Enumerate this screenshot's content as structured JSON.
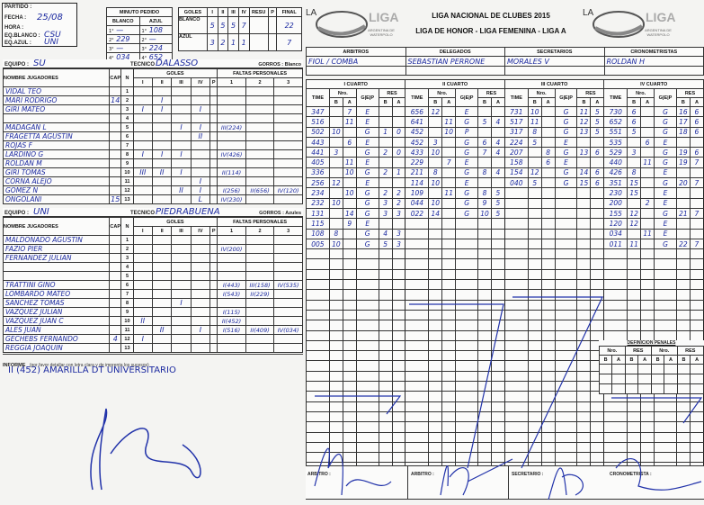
{
  "header": {
    "partido_label": "PARTIDO :",
    "fecha_label": "FECHA :",
    "fecha": "25/08",
    "hora_label": "HORA :",
    "eq_blanco_label": "EQ.BLANCO :",
    "eq_blanco": "CSU",
    "eq_azul_label": "EQ.AZUL :",
    "eq_azul": "UNI"
  },
  "minuto_pedido": {
    "title": "MINUTO PEDIDO",
    "blanco_label": "BLANCO",
    "azul_label": "AZUL",
    "rows": [
      {
        "q": "1°",
        "blanco": "—",
        "azul": "108"
      },
      {
        "q": "2°",
        "blanco": "229",
        "azul": "—"
      },
      {
        "q": "3°",
        "blanco": "—",
        "azul": "224"
      },
      {
        "q": "4°",
        "blanco": "034",
        "azul": "652"
      }
    ]
  },
  "goles": {
    "title": "GOLES",
    "cols": [
      "I",
      "II",
      "III",
      "IV",
      "RESU",
      "P",
      "FINAL"
    ],
    "blanco": {
      "label": "BLANCO",
      "q": [
        "5",
        "5",
        "5",
        "7"
      ],
      "resu": "",
      "p": "",
      "final": "22"
    },
    "azul": {
      "label": "AZUL",
      "q": [
        "3",
        "2",
        "1",
        "1"
      ],
      "resu": "",
      "p": "",
      "final": "7"
    }
  },
  "brand": {
    "la": "LA",
    "liga": "LIGA",
    "sub": "ARGENTINA DE WATERPOLO",
    "title1": "LIGA NACIONAL DE CLUBES 2015",
    "title2": "LIGA DE HONOR - LIGA FEMENINA - LIGA A"
  },
  "officials": {
    "headers": [
      "ARBITROS",
      "DELEGADOS",
      "SECRETARIOS",
      "CRONOMETRISTAS"
    ],
    "values": [
      "FIOL / COMBA",
      "SEBASTIAN PERRONE",
      "MORALES V",
      "ROLDAN H"
    ]
  },
  "labels": {
    "equipo": "EQUIPO :",
    "tecnico": "TECNICO",
    "nombre": "NOMBRE JUGADORES",
    "cap": "CAP",
    "n": "N",
    "goles": "GOLES",
    "faltas": "FALTAS PERSONALES",
    "gq": [
      "I",
      "II",
      "III",
      "IV",
      "P"
    ],
    "fq": [
      "1",
      "2",
      "3"
    ],
    "informe": "INFORME",
    "informe_note": "(por favor detallar con letra clara y de imprenta los sucesos)",
    "cuarto": [
      "I CUARTO",
      "II CUARTO",
      "III CUARTO",
      "IV CUARTO"
    ],
    "time": "TIME",
    "nro": "Nro.",
    "gep": "G|E|P",
    "res": "RES",
    "b": "B",
    "a": "A",
    "penales": "DEFINICION PENALES",
    "arbitro": "ARBITRO :",
    "secretario": "SECRETARIO :",
    "cronometrista": "CRONOMETRISTA :"
  },
  "team_a": {
    "equipo": "SU",
    "tecnico": "DALASSO",
    "gorros": "GORROS : Blanco",
    "players": [
      {
        "n": "1",
        "name": "VIDAL TEO",
        "cap": "",
        "g": [
          "",
          "",
          "",
          "",
          ""
        ],
        "f": [
          "",
          "",
          ""
        ]
      },
      {
        "n": "2",
        "name": "MARI RODRIGO",
        "cap": "14",
        "g": [
          "",
          "I",
          "",
          "",
          ""
        ],
        "f": [
          "",
          "",
          ""
        ]
      },
      {
        "n": "3",
        "name": "GIRI MATEO",
        "cap": "",
        "g": [
          "I",
          "I",
          "",
          "I",
          ""
        ],
        "f": [
          "",
          "",
          ""
        ]
      },
      {
        "n": "4",
        "name": "",
        "cap": "",
        "g": [
          "",
          "",
          "",
          "",
          ""
        ],
        "f": [
          "",
          "",
          ""
        ]
      },
      {
        "n": "5",
        "name": "MADAGAN L",
        "cap": "",
        "g": [
          "",
          "",
          "I",
          "I",
          ""
        ],
        "f": [
          "III(224)",
          "",
          ""
        ]
      },
      {
        "n": "6",
        "name": "FRAGETTA AGUSTIN",
        "cap": "",
        "g": [
          "",
          "",
          "",
          "II",
          ""
        ],
        "f": [
          "",
          "",
          ""
        ]
      },
      {
        "n": "7",
        "name": "ROJAS F",
        "cap": "",
        "g": [
          "",
          "",
          "",
          "",
          ""
        ],
        "f": [
          "",
          "",
          ""
        ]
      },
      {
        "n": "8",
        "name": "LARDINO G",
        "cap": "",
        "g": [
          "I",
          "I",
          "I",
          "",
          ""
        ],
        "f": [
          "IV(426)",
          "",
          ""
        ]
      },
      {
        "n": "9",
        "name": "ROLDAN M",
        "cap": "",
        "g": [
          "",
          "",
          "",
          "",
          ""
        ],
        "f": [
          "",
          "",
          ""
        ]
      },
      {
        "n": "10",
        "name": "GIRI TOMAS",
        "cap": "",
        "g": [
          "III",
          "II",
          "I",
          "",
          ""
        ],
        "f": [
          "II(114)",
          "",
          ""
        ]
      },
      {
        "n": "11",
        "name": "CORNA ALEJO",
        "cap": "",
        "g": [
          "",
          "",
          "",
          "I",
          ""
        ],
        "f": [
          "",
          "",
          ""
        ]
      },
      {
        "n": "12",
        "name": "GOMEZ N",
        "cap": "",
        "g": [
          "",
          "",
          "II",
          "I",
          ""
        ],
        "f": [
          "I(256)",
          "II(656)",
          "IV(120)"
        ]
      },
      {
        "n": "13",
        "name": "ONGOLANI",
        "cap": "15",
        "g": [
          "",
          "",
          "",
          "L",
          ""
        ],
        "f": [
          "IV(230)",
          "",
          ""
        ]
      }
    ]
  },
  "team_b": {
    "equipo": "UNI",
    "tecnico": "PIEDRABUENA",
    "gorros": "GORROS : Azules",
    "players": [
      {
        "n": "1",
        "name": "MALDONADO AGUSTIN",
        "cap": "",
        "g": [
          "",
          "",
          "",
          "",
          ""
        ],
        "f": [
          "",
          "",
          ""
        ]
      },
      {
        "n": "2",
        "name": "FAZIO PIER",
        "cap": "",
        "g": [
          "",
          "",
          "",
          "",
          ""
        ],
        "f": [
          "IV(200)",
          "",
          ""
        ]
      },
      {
        "n": "3",
        "name": "FERNANDEZ JULIAN",
        "cap": "",
        "g": [
          "",
          "",
          "",
          "",
          ""
        ],
        "f": [
          "",
          "",
          ""
        ]
      },
      {
        "n": "4",
        "name": "",
        "cap": "",
        "g": [
          "",
          "",
          "",
          "",
          ""
        ],
        "f": [
          "",
          "",
          ""
        ]
      },
      {
        "n": "5",
        "name": "",
        "cap": "",
        "g": [
          "",
          "",
          "",
          "",
          ""
        ],
        "f": [
          "",
          "",
          ""
        ]
      },
      {
        "n": "6",
        "name": "TRATTINI GINO",
        "cap": "",
        "g": [
          "",
          "",
          "",
          "",
          ""
        ],
        "f": [
          "I(443)",
          "III(158)",
          "IV(535)"
        ]
      },
      {
        "n": "7",
        "name": "LOMBARDO MATEO",
        "cap": "",
        "g": [
          "",
          "",
          "",
          "",
          ""
        ],
        "f": [
          "I(543)",
          "II(229)",
          ""
        ]
      },
      {
        "n": "8",
        "name": "SANCHEZ TOMAS",
        "cap": "",
        "g": [
          "",
          "",
          "I",
          "",
          ""
        ],
        "f": [
          "",
          "",
          ""
        ]
      },
      {
        "n": "9",
        "name": "VAZQUEZ JULIAN",
        "cap": "",
        "g": [
          "",
          "",
          "",
          "",
          ""
        ],
        "f": [
          "I(115)",
          "",
          ""
        ]
      },
      {
        "n": "10",
        "name": "VAZQUEZ JUAN C",
        "cap": "",
        "g": [
          "II",
          "",
          "",
          "",
          ""
        ],
        "f": [
          "II(452)",
          "",
          ""
        ]
      },
      {
        "n": "11",
        "name": "ALES JUAN",
        "cap": "",
        "g": [
          "",
          "II",
          "",
          "I",
          ""
        ],
        "f": [
          "I(516)",
          "II(409)",
          "IV(034)"
        ]
      },
      {
        "n": "12",
        "name": "GECHEBS FERNANDO",
        "cap": "4",
        "g": [
          "I",
          "",
          "",
          "",
          ""
        ],
        "f": [
          "",
          "",
          ""
        ]
      },
      {
        "n": "13",
        "name": "REGGIA JOAQUIN",
        "cap": "",
        "g": [
          "",
          "",
          "",
          "",
          ""
        ],
        "f": [
          "",
          "",
          ""
        ]
      }
    ]
  },
  "informe_text": "II (452) AMARILLA DT UNIVERSITARIO",
  "quarters": [
    [
      [
        "347",
        "",
        "7",
        "E",
        "",
        ""
      ],
      [
        "516",
        "",
        "11",
        "E",
        "",
        ""
      ],
      [
        "502",
        "10",
        "",
        "G",
        "1",
        "0"
      ],
      [
        "443",
        "",
        "6",
        "E",
        "",
        ""
      ],
      [
        "441",
        "3",
        "",
        "G",
        "2",
        "0"
      ],
      [
        "405",
        "",
        "11",
        "E",
        "",
        ""
      ],
      [
        "336",
        "",
        "10",
        "G",
        "2",
        "1"
      ],
      [
        "256",
        "12",
        "",
        "E",
        "",
        ""
      ],
      [
        "234",
        "",
        "10",
        "G",
        "2",
        "2"
      ],
      [
        "232",
        "10",
        "",
        "G",
        "3",
        "2"
      ],
      [
        "131",
        "",
        "14",
        "G",
        "3",
        "3"
      ],
      [
        "115",
        "",
        "9",
        "E",
        "",
        ""
      ],
      [
        "108",
        "8",
        "",
        "G",
        "4",
        "3"
      ],
      [
        "005",
        "10",
        "",
        "G",
        "5",
        "3"
      ]
    ],
    [
      [
        "656",
        "12",
        "",
        "E",
        "",
        ""
      ],
      [
        "641",
        "",
        "11",
        "G",
        "5",
        "4"
      ],
      [
        "452",
        "",
        "10",
        "P",
        "",
        ""
      ],
      [
        "452",
        "3",
        "",
        "G",
        "6",
        "4"
      ],
      [
        "433",
        "10",
        "",
        "G",
        "7",
        "4"
      ],
      [
        "229",
        "",
        "7",
        "E",
        "",
        ""
      ],
      [
        "211",
        "8",
        "",
        "G",
        "8",
        "4"
      ],
      [
        "114",
        "10",
        "",
        "E",
        "",
        ""
      ],
      [
        "109",
        "",
        "11",
        "G",
        "8",
        "5"
      ],
      [
        "044",
        "10",
        "",
        "G",
        "9",
        "5"
      ],
      [
        "022",
        "14",
        "",
        "G",
        "10",
        "5"
      ]
    ],
    [
      [
        "731",
        "10",
        "",
        "G",
        "11",
        "5"
      ],
      [
        "517",
        "11",
        "",
        "G",
        "12",
        "5"
      ],
      [
        "317",
        "8",
        "",
        "G",
        "13",
        "5"
      ],
      [
        "224",
        "5",
        "",
        "E",
        "",
        ""
      ],
      [
        "207",
        "",
        "8",
        "G",
        "13",
        "6"
      ],
      [
        "158",
        "",
        "6",
        "E",
        "",
        ""
      ],
      [
        "154",
        "12",
        "",
        "G",
        "14",
        "6"
      ],
      [
        "040",
        "5",
        "",
        "G",
        "15",
        "6"
      ]
    ],
    [
      [
        "730",
        "6",
        "",
        "G",
        "16",
        "6"
      ],
      [
        "652",
        "6",
        "",
        "G",
        "17",
        "6"
      ],
      [
        "551",
        "5",
        "",
        "G",
        "18",
        "6"
      ],
      [
        "535",
        "",
        "6",
        "E",
        "",
        ""
      ],
      [
        "529",
        "3",
        "",
        "G",
        "19",
        "6"
      ],
      [
        "440",
        "",
        "11",
        "G",
        "19",
        "7"
      ],
      [
        "426",
        "8",
        "",
        "E",
        "",
        ""
      ],
      [
        "351",
        "15",
        "",
        "G",
        "20",
        "7"
      ],
      [
        "230",
        "15",
        "",
        "E",
        "",
        ""
      ],
      [
        "200",
        "",
        "2",
        "E",
        "",
        ""
      ],
      [
        "155",
        "12",
        "",
        "G",
        "21",
        "7"
      ],
      [
        "120",
        "12",
        "",
        "E",
        "",
        ""
      ],
      [
        "034",
        "",
        "11",
        "E",
        "",
        ""
      ],
      [
        "011",
        "11",
        "",
        "G",
        "22",
        "7"
      ]
    ]
  ],
  "colors": {
    "ink": "#1c2aa0",
    "paper": "#f4f4f2"
  }
}
